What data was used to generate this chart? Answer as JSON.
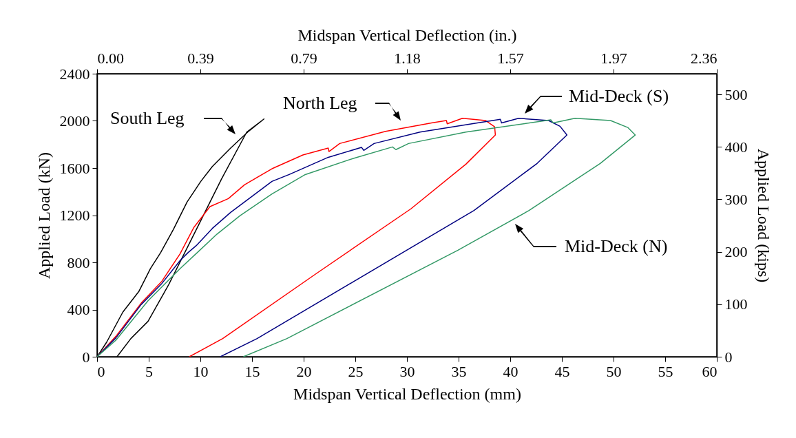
{
  "chart_data": {
    "type": "line",
    "xlabel": "Midspan Vertical Deflection (mm)",
    "ylabel": "Applied Load (kN)",
    "x2label": "Midspan Vertical Deflection (in.)",
    "y2label": "Applied Load (kips)",
    "xlim": [
      0,
      60
    ],
    "xticks": [
      0,
      5,
      10,
      15,
      20,
      25,
      30,
      35,
      40,
      45,
      50,
      55,
      60
    ],
    "ylim": [
      0,
      2400
    ],
    "yticks": [
      0,
      400,
      800,
      1200,
      1600,
      2000,
      2400
    ],
    "x2lim": [
      0,
      2.3622
    ],
    "x2ticks": [
      {
        "value": 0,
        "label": "0.00"
      },
      {
        "value": 0.3937,
        "label": "0.39"
      },
      {
        "value": 0.7874,
        "label": "0.79"
      },
      {
        "value": 1.1811,
        "label": "1.18"
      },
      {
        "value": 1.5748,
        "label": "1.57"
      },
      {
        "value": 1.9685,
        "label": "1.97"
      },
      {
        "value": 2.3622,
        "label": "2.36"
      }
    ],
    "y2lim": [
      0,
      539.5
    ],
    "y2ticks": [
      0,
      100,
      200,
      300,
      400,
      500
    ],
    "legend": false,
    "annotations": [
      "South Leg",
      "North Leg",
      "Mid-Deck (S)",
      "Mid-Deck (N)"
    ],
    "series": [
      {
        "color": "#000000",
        "x": [
          0,
          0.93,
          2.49,
          4.04,
          5.16,
          6.16,
          7.38,
          8.71,
          10.04,
          11.16,
          12.93,
          14.71,
          16.16,
          14.49,
          12.04,
          9.38,
          6.93,
          4.93,
          3.27,
          1.93
        ],
        "values": [
          0,
          124,
          378,
          553,
          747,
          884,
          1078,
          1312,
          1487,
          1613,
          1769,
          1915,
          2016,
          1905,
          1506,
          1039,
          611,
          300,
          154,
          0
        ]
      },
      {
        "color": "#ff0000",
        "x": [
          0,
          1.82,
          4.27,
          6.27,
          8.04,
          9.38,
          10.93,
          12.71,
          14.27,
          16.93,
          19.93,
          22.38,
          22.45,
          23.49,
          27.93,
          32.38,
          33.82,
          33.9,
          35.38,
          37.6,
          38.49,
          38.56,
          35.71,
          30.38,
          21.27,
          12.16,
          8.93
        ],
        "values": [
          0,
          173,
          455,
          640,
          874,
          1098,
          1273,
          1341,
          1458,
          1594,
          1711,
          1769,
          1740,
          1808,
          1911,
          1983,
          2003,
          1975,
          2022,
          2003,
          1950,
          1880,
          1633,
          1254,
          708,
          154,
          0
        ]
      },
      {
        "color": "#000080",
        "x": [
          0,
          1.82,
          4.27,
          6.27,
          8.04,
          8.82,
          9.6,
          11.16,
          12.93,
          14.71,
          16.93,
          18.6,
          22.38,
          25.6,
          25.82,
          26.82,
          31.27,
          36.82,
          39.04,
          39.16,
          40.82,
          43.71,
          44.82,
          45.49,
          42.6,
          36.49,
          15.49,
          11.93
        ],
        "values": [
          0,
          160,
          443,
          621,
          816,
          884,
          942,
          1088,
          1224,
          1341,
          1487,
          1545,
          1691,
          1775,
          1750,
          1808,
          1905,
          1983,
          2013,
          1983,
          2022,
          2003,
          1954,
          1880,
          1639,
          1240,
          154,
          0
        ]
      },
      {
        "color": "#339966",
        "x": [
          0,
          1.82,
          4.93,
          8.04,
          9.71,
          11.6,
          13.82,
          16.93,
          20.16,
          24.82,
          28.6,
          28.93,
          30.16,
          35.71,
          43.93,
          44.15,
          46.27,
          49.71,
          51.38,
          52.1,
          48.71,
          41.82,
          34.93,
          18.38,
          14.16
        ],
        "values": [
          0,
          140,
          475,
          747,
          884,
          1039,
          1195,
          1380,
          1545,
          1682,
          1779,
          1756,
          1808,
          1905,
          2009,
          1983,
          2022,
          2003,
          1944,
          1880,
          1639,
          1240,
          903,
          154,
          0
        ]
      }
    ]
  }
}
